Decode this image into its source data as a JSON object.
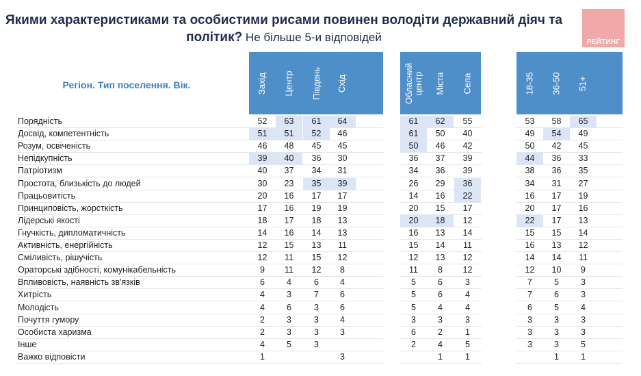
{
  "title": {
    "line1": "Якими характеристиками та особистими рисами повинен володіти державний діяч та",
    "line2_bold": "політик?",
    "line2_rest": " Не більше  5-и відповідей"
  },
  "logo": {
    "text": "РЕЙТИНГ",
    "color": "#f0a8a8"
  },
  "row_header": "Регіон. Тип поселення. Вік.",
  "colors": {
    "header": "#4f8fc9",
    "highlight": "#dbe5f5",
    "label": "#3f7fbf"
  },
  "chart_data": {
    "type": "table",
    "groups": [
      {
        "columns": [
          "Захід",
          "Центр",
          "Південь",
          "Схід"
        ]
      },
      {
        "columns": [
          "Обласний центр",
          "Міста",
          "Села"
        ]
      },
      {
        "columns": [
          "18-35",
          "36-50",
          "51+"
        ]
      }
    ],
    "columns": [
      "Захід",
      "Центр",
      "Південь",
      "Схід",
      "Обласний центр",
      "Міста",
      "Села",
      "18-35",
      "36-50",
      "51+"
    ],
    "rows": [
      {
        "label": "Порядність",
        "values": [
          "52",
          "63",
          "61",
          "64",
          "61",
          "62",
          "55",
          "53",
          "58",
          "65"
        ],
        "highlight": [
          1,
          2,
          3,
          4,
          5,
          9
        ]
      },
      {
        "label": "Досвід, компетентність",
        "values": [
          "51",
          "51",
          "52",
          "46",
          "61",
          "50",
          "40",
          "49",
          "54",
          "49"
        ],
        "highlight": [
          0,
          1,
          2,
          4,
          8
        ]
      },
      {
        "label": "Розум, освіченість",
        "values": [
          "46",
          "48",
          "45",
          "45",
          "50",
          "46",
          "42",
          "50",
          "42",
          "45"
        ],
        "highlight": [
          4
        ]
      },
      {
        "label": "Непідкупність",
        "values": [
          "39",
          "40",
          "36",
          "30",
          "36",
          "37",
          "39",
          "44",
          "36",
          "33"
        ],
        "highlight": [
          0,
          1,
          7
        ]
      },
      {
        "label": "Патріотизм",
        "values": [
          "40",
          "37",
          "34",
          "31",
          "34",
          "36",
          "39",
          "38",
          "36",
          "35"
        ],
        "highlight": []
      },
      {
        "label": "Простота, близькість до людей",
        "values": [
          "30",
          "23",
          "35",
          "39",
          "26",
          "29",
          "36",
          "34",
          "31",
          "27"
        ],
        "highlight": [
          2,
          3,
          6
        ]
      },
      {
        "label": "Працьовитість",
        "values": [
          "20",
          "16",
          "17",
          "17",
          "14",
          "16",
          "22",
          "16",
          "17",
          "19"
        ],
        "highlight": [
          6
        ]
      },
      {
        "label": "Принциповість, жорсткість",
        "values": [
          "17",
          "16",
          "19",
          "19",
          "20",
          "15",
          "17",
          "20",
          "17",
          "16"
        ],
        "highlight": []
      },
      {
        "label": "Лідерські якості",
        "values": [
          "18",
          "17",
          "18",
          "13",
          "20",
          "18",
          "12",
          "22",
          "17",
          "13"
        ],
        "highlight": [
          4,
          5,
          7
        ]
      },
      {
        "label": "Гнучкість, дипломатичність",
        "values": [
          "14",
          "16",
          "14",
          "13",
          "16",
          "13",
          "14",
          "15",
          "15",
          "14"
        ],
        "highlight": []
      },
      {
        "label": "Активність, енергійність",
        "values": [
          "12",
          "15",
          "13",
          "11",
          "15",
          "14",
          "11",
          "16",
          "13",
          "12"
        ],
        "highlight": []
      },
      {
        "label": "Сміливість, рішучість",
        "values": [
          "12",
          "11",
          "15",
          "12",
          "12",
          "13",
          "12",
          "14",
          "14",
          "11"
        ],
        "highlight": []
      },
      {
        "label": "Ораторські здібності, комунікабельність",
        "values": [
          "9",
          "11",
          "12",
          "8",
          "11",
          "8",
          "12",
          "12",
          "10",
          "9"
        ],
        "highlight": []
      },
      {
        "label": "Впливовість, наявність зв'язків",
        "values": [
          "6",
          "4",
          "6",
          "4",
          "5",
          "6",
          "3",
          "7",
          "5",
          "3"
        ],
        "highlight": []
      },
      {
        "label": "Хитрість",
        "values": [
          "4",
          "3",
          "7",
          "6",
          "5",
          "6",
          "4",
          "7",
          "6",
          "3"
        ],
        "highlight": []
      },
      {
        "label": "Молодість",
        "values": [
          "4",
          "6",
          "3",
          "6",
          "5",
          "4",
          "4",
          "6",
          "5",
          "4"
        ],
        "highlight": []
      },
      {
        "label": "Почуття гумору",
        "values": [
          "2",
          "3",
          "3",
          "4",
          "3",
          "3",
          "3",
          "3",
          "3",
          "3"
        ],
        "highlight": []
      },
      {
        "label": "Особиста харизма",
        "values": [
          "2",
          "3",
          "3",
          "3",
          "6",
          "2",
          "1",
          "3",
          "3",
          "3"
        ],
        "highlight": []
      },
      {
        "label": "Інше",
        "values": [
          "4",
          "5",
          "3",
          "",
          "2",
          "4",
          "5",
          "3",
          "3",
          "5"
        ],
        "highlight": []
      },
      {
        "label": "Важко відповісти",
        "values": [
          "1",
          "",
          "",
          "3",
          "",
          "1",
          "1",
          "",
          "1",
          "1"
        ],
        "highlight": []
      }
    ]
  }
}
